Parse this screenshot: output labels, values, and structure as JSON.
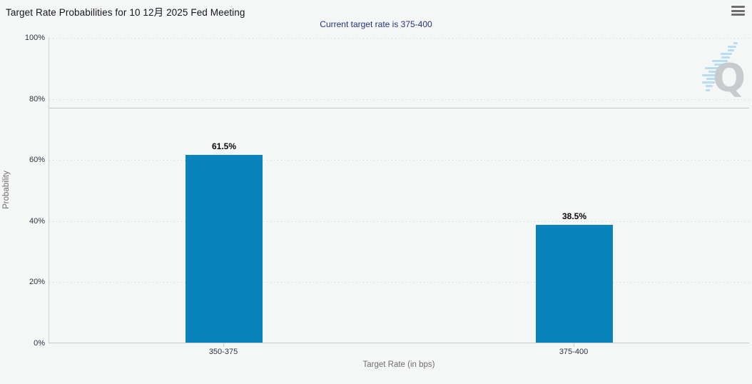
{
  "header": {
    "title": "Target Rate Probabilities for 10 12月 2025 Fed Meeting",
    "subtitle": "Current target rate is 375-400",
    "menu_icon": "hamburger-menu-icon"
  },
  "chart_data": {
    "type": "bar",
    "title": "Target Rate Probabilities for 10 12月 2025 Fed Meeting",
    "subtitle": "Current target rate is 375-400",
    "categories": [
      "350-375",
      "375-400"
    ],
    "values": [
      61.5,
      38.5
    ],
    "bar_labels": [
      "61.5%",
      "38.5%"
    ],
    "xlabel": "Target Rate (in bps)",
    "ylabel": "Probability",
    "ylim": [
      0,
      100
    ],
    "yticks": [
      "100%",
      "80%",
      "60%",
      "40%",
      "20%",
      "0%"
    ],
    "grid": "horizontal dotted gridlines at 20% intervals",
    "reference_line_y": 77,
    "bar_color": "#0883bc",
    "watermark": "Q"
  },
  "colors": {
    "background": "#f5f6f6",
    "bar": "#0883bc",
    "subtitle_text": "#23357c",
    "title_text": "#15151f",
    "axis_text": "#2f3540",
    "axis_title_text": "#6e6e6e",
    "gridline": "#d2d2d2",
    "watermark_q": "#c7cbce",
    "watermark_lines": "#b9ddf0"
  }
}
